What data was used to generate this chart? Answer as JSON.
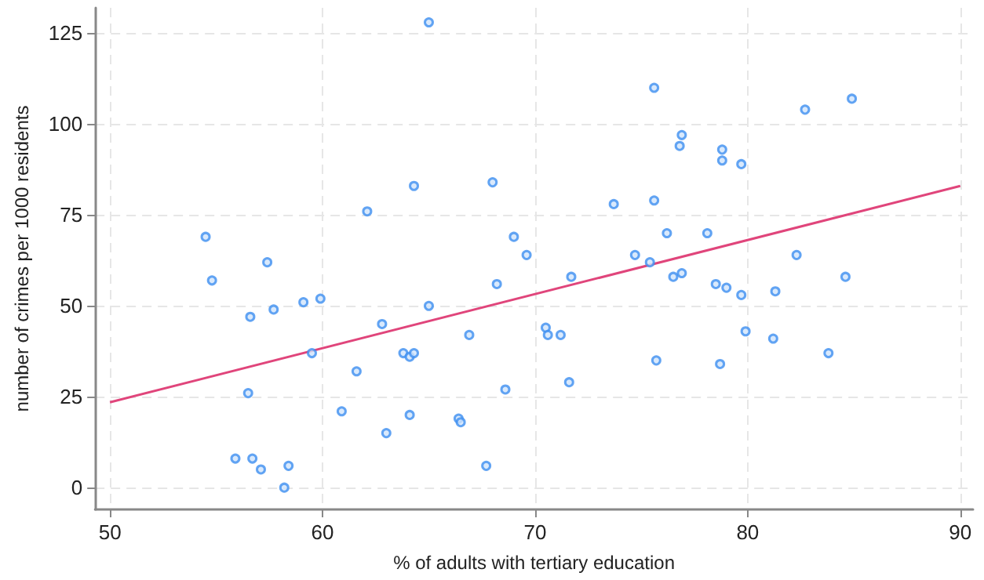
{
  "chart_data": {
    "type": "scatter",
    "xlabel": "% of adults with tertiary education",
    "ylabel": "number of crimes per 1000 residents",
    "xlim": [
      49.3,
      90.6
    ],
    "ylim": [
      -6,
      132
    ],
    "xticks": [
      50,
      60,
      70,
      80,
      90
    ],
    "yticks": [
      0,
      25,
      50,
      75,
      100,
      125
    ],
    "grid": true,
    "series": [
      {
        "color": "#3d8ef0",
        "marker": "circle",
        "x": [
          65.0,
          54.5,
          54.8,
          57.4,
          62.1,
          64.3,
          68.0,
          69.0,
          69.6,
          71.7,
          73.7,
          74.7,
          75.4,
          75.6,
          75.6,
          76.2,
          76.5,
          76.9,
          76.9,
          76.8,
          78.8,
          78.8,
          79.7,
          78.1,
          82.3,
          82.7,
          84.9,
          84.6,
          68.2,
          68.6,
          67.7,
          70.5,
          70.6,
          71.2,
          71.6,
          75.7,
          78.5,
          79.0,
          79.7,
          79.9,
          81.3,
          81.2,
          78.7,
          83.8,
          56.6,
          57.7,
          59.1,
          59.9,
          59.5,
          56.5,
          55.9,
          56.7,
          57.1,
          58.2,
          58.4,
          60.9,
          61.6,
          62.8,
          63.0,
          63.8,
          64.1,
          64.3,
          64.1,
          65.0,
          66.9,
          66.4,
          66.5
        ],
        "values": [
          128,
          69,
          57,
          62,
          76,
          83,
          84,
          69,
          64,
          58,
          78,
          64,
          62,
          110,
          79,
          70,
          58,
          59,
          97,
          94,
          93,
          90,
          89,
          70,
          64,
          104,
          107,
          58,
          56,
          27,
          6,
          44,
          42,
          42,
          29,
          35,
          56,
          55,
          53,
          43,
          54,
          41,
          34,
          37,
          47,
          49,
          51,
          52,
          37,
          26,
          8,
          8,
          5,
          0,
          6,
          21,
          32,
          45,
          15,
          37,
          36,
          37,
          20,
          50,
          42,
          19,
          18
        ]
      },
      {
        "type": "line",
        "color": "#e0457b",
        "line_style": "solid",
        "marker": "none",
        "x": [
          50,
          90
        ],
        "values": [
          23.5,
          83
        ]
      }
    ]
  }
}
